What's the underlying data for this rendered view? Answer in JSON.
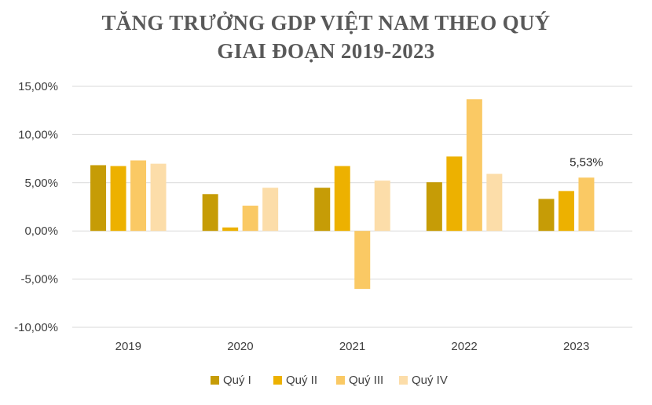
{
  "chart_data": {
    "type": "bar",
    "title_lines": [
      "TĂNG TRƯỞNG GDP VIỆT NAM THEO QUÝ",
      "GIAI ĐOẠN 2019-2023"
    ],
    "categories": [
      "2019",
      "2020",
      "2021",
      "2022",
      "2023"
    ],
    "series": [
      {
        "name": "Quý I",
        "color": "#C69C06",
        "values": [
          6.82,
          3.82,
          4.48,
          5.05,
          3.32
        ]
      },
      {
        "name": "Quý II",
        "color": "#EDB100",
        "values": [
          6.73,
          0.36,
          6.73,
          7.72,
          4.14
        ]
      },
      {
        "name": "Quý III",
        "color": "#FAC964",
        "values": [
          7.31,
          2.62,
          -6.02,
          13.67,
          5.53
        ]
      },
      {
        "name": "Quý IV",
        "color": "#FCDDA9",
        "values": [
          6.97,
          4.48,
          5.22,
          5.92,
          null
        ]
      }
    ],
    "y_ticks": [
      15,
      10,
      5,
      0,
      -5,
      -10
    ],
    "y_tick_labels": [
      "15,00%",
      "10,00%",
      "5,00%",
      "0,00%",
      "-5,00%",
      "-10,00%"
    ],
    "ylim": [
      -10,
      15
    ],
    "grid": true,
    "legend_position": "bottom",
    "annotations": [
      {
        "category": "2023",
        "series": "Quý III",
        "text": "5,53%"
      }
    ]
  }
}
